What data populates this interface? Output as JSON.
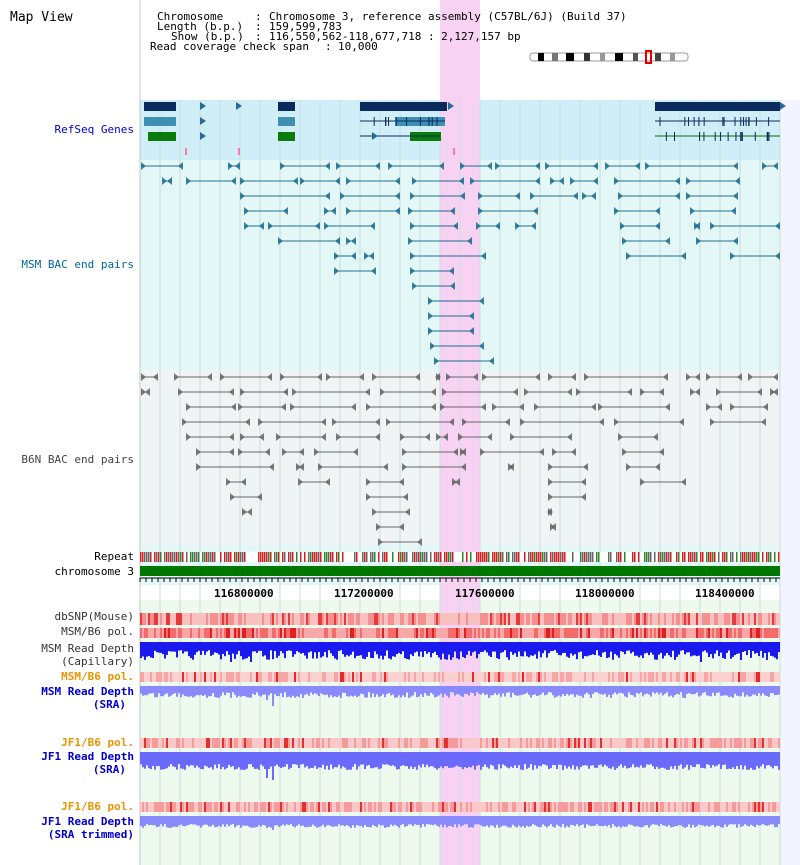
{
  "page": {
    "title": "Map View"
  },
  "info": {
    "chromosome_key": "Chromosome",
    "chromosome_value": "Chromosome 3, reference assembly (C57BL/6J) (Build 37)",
    "length_key": "Length (b.p.)",
    "length_value": "159,599,783",
    "show_key": "Show (b.p.)",
    "show_value": "116,550,562-118,677,718 : 2,127,157 bp",
    "coverage_key": "Read coverage check span",
    "coverage_value": "10,000"
  },
  "tracks": {
    "refseq": "RefSeq Genes",
    "msm_bac": "MSM BAC end pairs",
    "b6n_bac": "B6N BAC end pairs",
    "repeat": "Repeat",
    "chromosome": "chromosome 3",
    "dbsnp": "dbSNP(Mouse)",
    "msm_b6_pol_1": "MSM/B6 pol.",
    "msm_depth_cap_1": "MSM Read Depth",
    "msm_depth_cap_2": "(Capillary)",
    "msm_b6_pol_2": "MSM/B6 pol.",
    "msm_depth_sra_1": "MSM Read Depth",
    "msm_depth_sra_2": "(SRA)",
    "jf1_b6_pol_1": "JF1/B6 pol.",
    "jf1_depth_sra_1": "JF1 Read Depth",
    "jf1_depth_sra_2": "(SRA)",
    "jf1_b6_pol_2": "JF1/B6 pol.",
    "jf1_depth_trim_1": "JF1 Read Depth",
    "jf1_depth_trim_2": "(SRA trimmed)"
  },
  "ruler": {
    "ticks": [
      "116800000",
      "117200000",
      "117600000",
      "118000000",
      "118400000"
    ]
  },
  "colors": {
    "refseq_label": "#0000cc",
    "msm_label": "#006699",
    "b6n_label": "#444444",
    "orange_label": "#e69500",
    "blue_label": "#0000cc",
    "highlight": "#f5c6ee",
    "chromosome_bar": "#007700"
  }
}
